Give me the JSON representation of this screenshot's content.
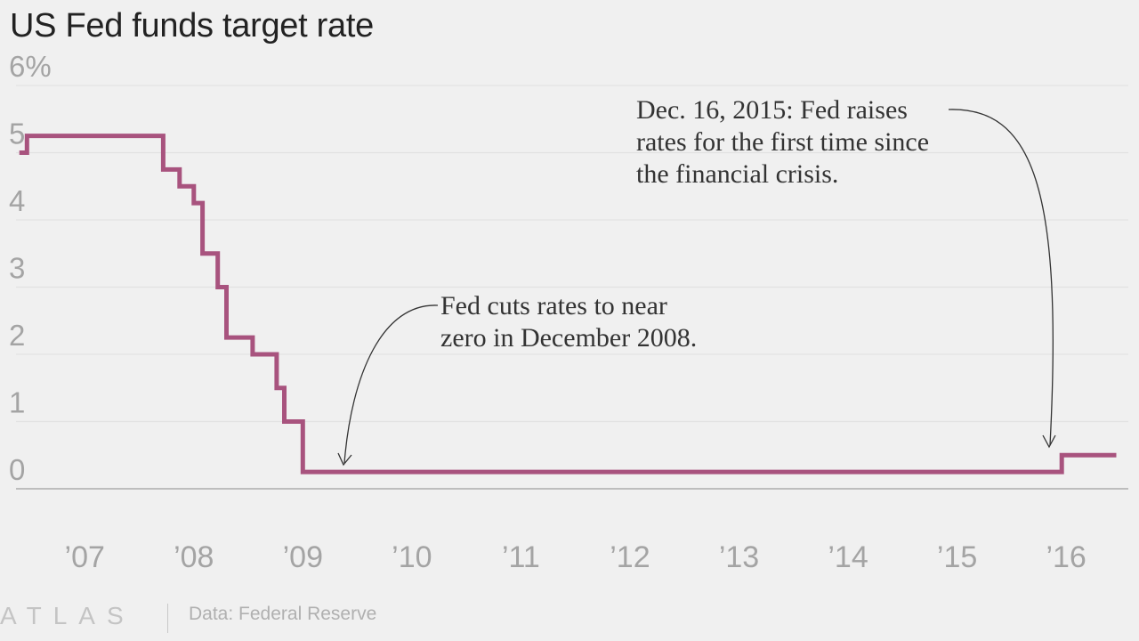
{
  "chart_data": {
    "type": "line",
    "title": "US Fed funds target rate",
    "ylim": [
      0,
      6
    ],
    "y_ticks": [
      "0",
      "1",
      "2",
      "3",
      "4",
      "5",
      "6%"
    ],
    "y_tick_values": [
      0,
      1,
      2,
      3,
      4,
      5,
      6
    ],
    "x_ticks": [
      "’07",
      "’08",
      "’09",
      "’10",
      "’11",
      "’12",
      "’13",
      "’14",
      "’15",
      "’16"
    ],
    "x_tick_values": [
      2007,
      2008,
      2009,
      2010,
      2011,
      2012,
      2013,
      2014,
      2015,
      2016
    ],
    "xlim": [
      2006.37,
      2016.57
    ],
    "grid": true,
    "step": "after",
    "line_color": "#a8537e",
    "series": [
      {
        "x": [
          2006.4,
          2006.47,
          2007.72,
          2007.87,
          2008.0,
          2008.08,
          2008.22,
          2008.3,
          2008.54,
          2008.76,
          2008.79,
          2008.83,
          2009.0,
          2015.96,
          2016.46
        ],
        "values": [
          5.0,
          5.25,
          4.75,
          4.5,
          4.25,
          3.5,
          3.0,
          2.25,
          2.0,
          1.5,
          1.5,
          1.0,
          0.25,
          0.5,
          0.5
        ]
      }
    ],
    "annotations": [
      {
        "lines": [
          "Fed cuts rates to near",
          "zero in December 2008."
        ],
        "point": [
          2009.03,
          0.27
        ]
      },
      {
        "lines": [
          "Dec. 16, 2015: Fed raises",
          "rates for the first time since",
          "the financial crisis."
        ],
        "point": [
          2015.98,
          0.55
        ]
      }
    ]
  },
  "footer": {
    "brand": "ATLAS",
    "source": "Data: Federal Reserve"
  }
}
